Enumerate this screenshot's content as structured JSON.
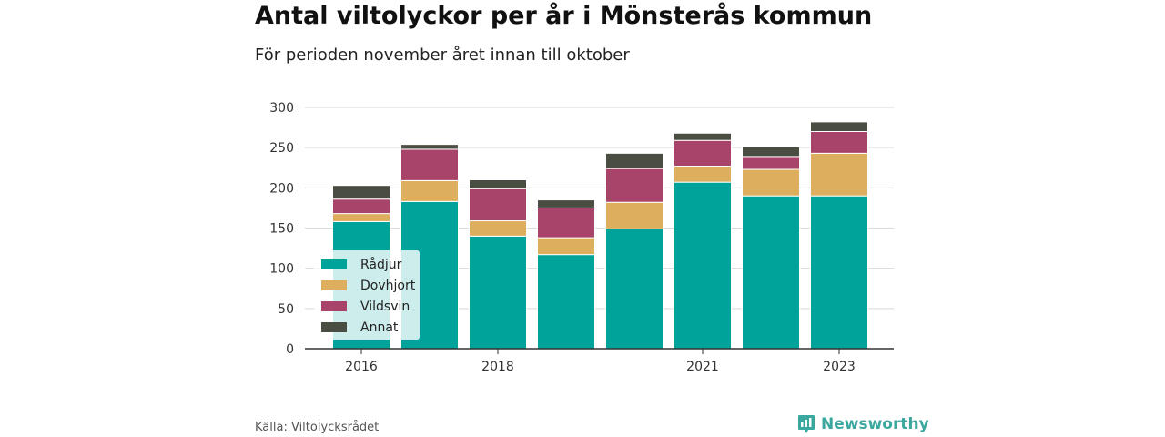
{
  "title": "Antal viltolyckor per år i Mönsterås kommun",
  "subtitle": "För perioden november året innan till oktober",
  "source": "Källa: Viltolycksrådet",
  "brand": {
    "name": "Newsworthy",
    "icon": "newsworthy-logo-icon",
    "color": "#3aa89e"
  },
  "chart_data": {
    "type": "bar",
    "stacked": true,
    "categories": [
      "2016",
      "2017",
      "2018",
      "2019",
      "2020",
      "2021",
      "2022",
      "2023"
    ],
    "x_tick_labels": [
      "2016",
      "",
      "2018",
      "",
      "",
      "2021",
      "",
      "2023"
    ],
    "series": [
      {
        "name": "Rådjur",
        "color": "#00a39a",
        "values": [
          158,
          183,
          140,
          117,
          149,
          207,
          190,
          190
        ]
      },
      {
        "name": "Dovhjort",
        "color": "#dcae5e",
        "values": [
          10,
          26,
          19,
          21,
          33,
          20,
          33,
          53
        ]
      },
      {
        "name": "Vildsvin",
        "color": "#a84469",
        "values": [
          18,
          39,
          40,
          37,
          42,
          32,
          16,
          27
        ]
      },
      {
        "name": "Annat",
        "color": "#4a4e42",
        "values": [
          17,
          6,
          11,
          10,
          19,
          9,
          12,
          12
        ]
      }
    ],
    "ylim": [
      0,
      300
    ],
    "yticks": [
      0,
      50,
      100,
      150,
      200,
      250,
      300
    ],
    "grid": true,
    "legend": "bottom-left"
  }
}
